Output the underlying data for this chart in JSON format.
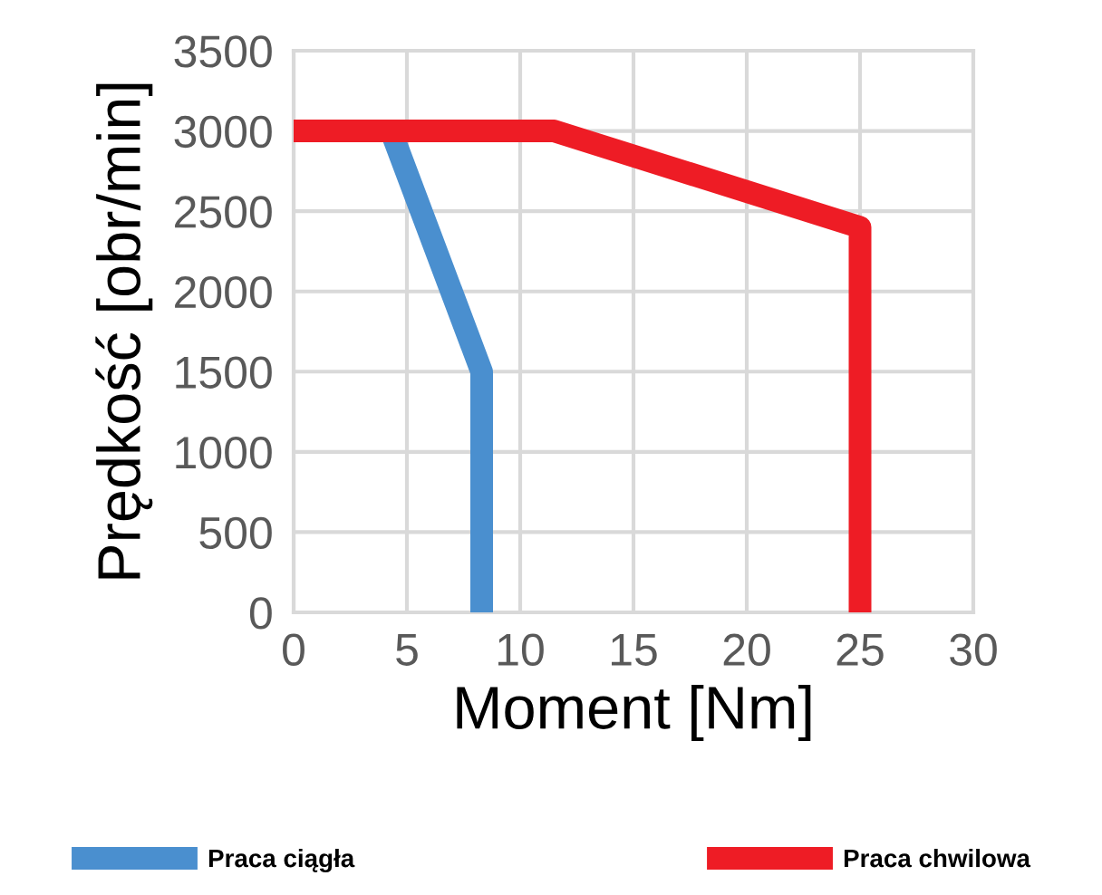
{
  "chart_data": {
    "type": "line",
    "xlabel": "Moment [Nm]",
    "ylabel": "Prędkość [obr/min]",
    "series": [
      {
        "name": "Praca ciągła",
        "color": "#4a8fcf",
        "x": [
          4.3,
          8.3,
          8.3
        ],
        "values": [
          3000,
          1500,
          0
        ]
      },
      {
        "name": "Praca chwilowa",
        "color": "#ee1c25",
        "x": [
          0,
          11.5,
          25,
          25
        ],
        "values": [
          3000,
          3000,
          2400,
          0
        ]
      }
    ],
    "xlim": [
      0,
      30
    ],
    "xticks": [
      0,
      5,
      10,
      15,
      20,
      25,
      30
    ],
    "ylim": [
      0,
      3500
    ],
    "yticks": [
      0,
      500,
      1000,
      1500,
      2000,
      2500,
      3000,
      3500
    ],
    "grid": true,
    "legend": "bottom",
    "line_style": "solid"
  }
}
